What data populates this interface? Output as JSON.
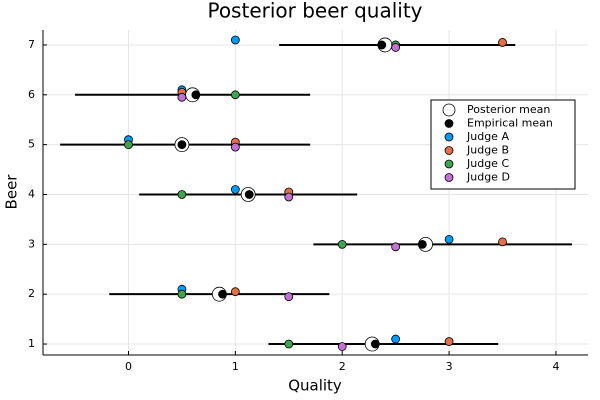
{
  "chart_data": {
    "type": "scatter",
    "title": "Posterior beer quality",
    "x_label": "Quality",
    "y_label": "Beer",
    "xlim": [
      -0.8,
      4.3
    ],
    "ylim": [
      0.78,
      7.3
    ],
    "xticks": [
      0,
      1,
      2,
      3,
      4
    ],
    "yticks": [
      1,
      2,
      3,
      4,
      5,
      6,
      7
    ],
    "grid": true,
    "legend": "upper right",
    "series": [
      {
        "name": "Posterior mean",
        "color": "#ffffff",
        "x": [
          2.28,
          0.85,
          2.78,
          1.12,
          0.5,
          0.6,
          2.4
        ],
        "y": [
          1,
          2,
          3,
          4,
          5,
          6,
          7
        ],
        "x_low": [
          1.31,
          -0.18,
          1.73,
          0.1,
          -0.64,
          -0.5,
          1.41
        ],
        "x_high": [
          3.46,
          1.88,
          4.15,
          2.14,
          1.7,
          1.7,
          3.62
        ]
      },
      {
        "name": "Empirical mean",
        "color": "#000000",
        "x": [
          2.31,
          0.88,
          2.75,
          1.13,
          0.5,
          0.63,
          2.37
        ],
        "y": [
          1,
          2,
          3,
          4,
          5,
          6,
          7
        ]
      },
      {
        "name": "Judge A",
        "color": "#009af9",
        "x": [
          2.5,
          0.5,
          3.0,
          1.0,
          0.0,
          0.5,
          1.0
        ],
        "y": [
          1.1,
          2.1,
          3.1,
          4.1,
          5.1,
          6.1,
          7.1
        ]
      },
      {
        "name": "Judge B",
        "color": "#e26f46",
        "x": [
          3.0,
          1.0,
          3.5,
          1.5,
          1.0,
          0.5,
          3.5
        ],
        "y": [
          1.05,
          2.05,
          3.05,
          4.05,
          5.05,
          6.05,
          7.05
        ]
      },
      {
        "name": "Judge C",
        "color": "#3ea44e",
        "x": [
          1.5,
          0.5,
          2.0,
          0.5,
          0.0,
          1.0,
          2.5
        ],
        "y": [
          1,
          2,
          3,
          4,
          5,
          6,
          7
        ]
      },
      {
        "name": "Judge D",
        "color": "#c371d2",
        "x": [
          2.0,
          1.5,
          2.5,
          1.5,
          1.0,
          0.5,
          2.5
        ],
        "y": [
          0.95,
          1.95,
          2.95,
          3.95,
          4.95,
          5.95,
          6.95
        ]
      }
    ]
  }
}
